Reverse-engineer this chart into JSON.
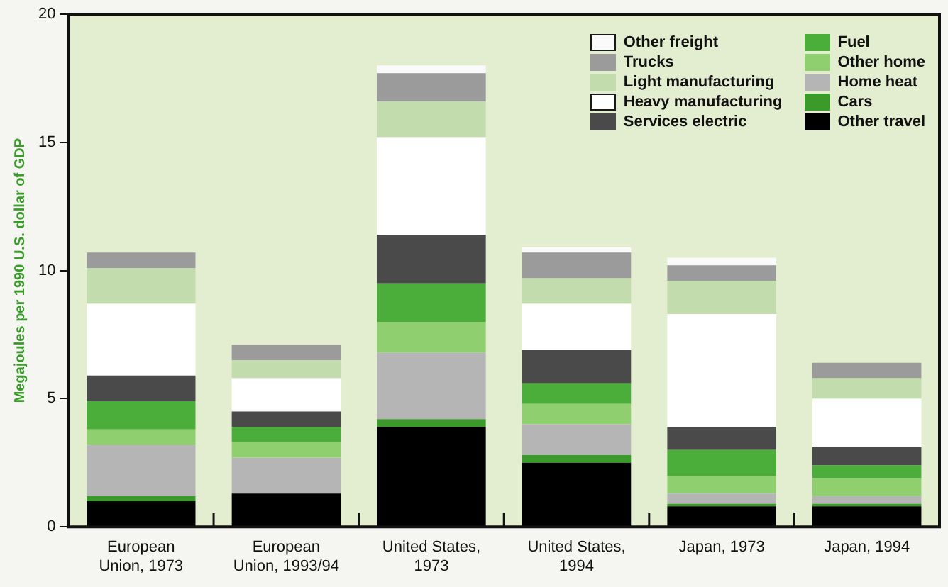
{
  "chart_data": {
    "type": "bar",
    "stacked": true,
    "ylabel": "Megajoules per 1990 U.S. dollar of GDP",
    "categories": [
      "European Union, 1973",
      "European Union, 1993/94",
      "United States, 1973",
      "United States, 1994",
      "Japan, 1973",
      "Japan, 1994"
    ],
    "ylim": [
      0,
      20
    ],
    "yticks": [
      0,
      5,
      10,
      15,
      20
    ],
    "grid": false,
    "legend": "top right",
    "series": [
      {
        "name": "Other travel",
        "color": "#000000",
        "values": [
          1.0,
          1.3,
          3.9,
          2.5,
          0.8,
          0.8
        ]
      },
      {
        "name": "Cars",
        "color": "#3a9a2a",
        "values": [
          0.2,
          0,
          0.3,
          0.3,
          0.1,
          0.1
        ]
      },
      {
        "name": "Home heat",
        "color": "#b5b5b5",
        "values": [
          2.0,
          1.4,
          2.6,
          1.2,
          0.4,
          0.3
        ]
      },
      {
        "name": "Other home",
        "color": "#8fcf70",
        "values": [
          0.6,
          0.6,
          1.2,
          0.8,
          0.7,
          0.7
        ]
      },
      {
        "name": "Fuel",
        "color": "#4cae3a",
        "values": [
          1.1,
          0.6,
          1.5,
          0.8,
          1.0,
          0.5
        ]
      },
      {
        "name": "Services electric",
        "color": "#4a4a4a",
        "values": [
          1.0,
          0.6,
          1.9,
          1.3,
          0.9,
          0.7
        ]
      },
      {
        "name": "Heavy manufacturing",
        "color": "#ffffff",
        "values": [
          2.8,
          1.3,
          3.8,
          1.8,
          4.4,
          1.9
        ]
      },
      {
        "name": "Light manufacturing",
        "color": "#c3dcae",
        "values": [
          1.4,
          0.7,
          1.4,
          1.0,
          1.3,
          0.8
        ]
      },
      {
        "name": "Trucks",
        "color": "#9b9b9b",
        "values": [
          0.6,
          0.6,
          1.1,
          1.0,
          0.6,
          0.6
        ]
      },
      {
        "name": "Other freight",
        "color": "#fafafa",
        "values": [
          0,
          0,
          0.3,
          0.2,
          0.3,
          0
        ]
      }
    ]
  }
}
